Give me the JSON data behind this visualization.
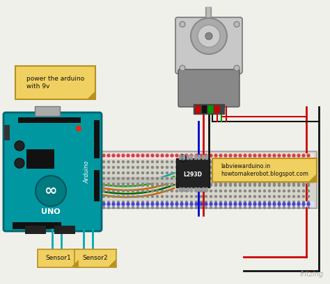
{
  "background_color": "#f0f0eb",
  "fritzing_text": "fritzing",
  "note_text1": "power the arduino\nwith 9v",
  "note_text2": "labviewarduino.in\nhowtomakerobot.blogspot.com",
  "sensor1_text": "Sensor1",
  "sensor2_text": "Sensor2",
  "ic_text": "L293D",
  "note_bg": "#f0d060",
  "note_border": "#b89020",
  "arduino_teal": "#00979c",
  "breadboard_bg": "#d8d8d0",
  "wire_red": "#cc0000",
  "wire_black": "#111111",
  "wire_green": "#00aa00",
  "wire_orange": "#cc6600",
  "wire_teal": "#00aaaa",
  "wire_blue": "#0000cc",
  "wire_darkgreen": "#006600"
}
